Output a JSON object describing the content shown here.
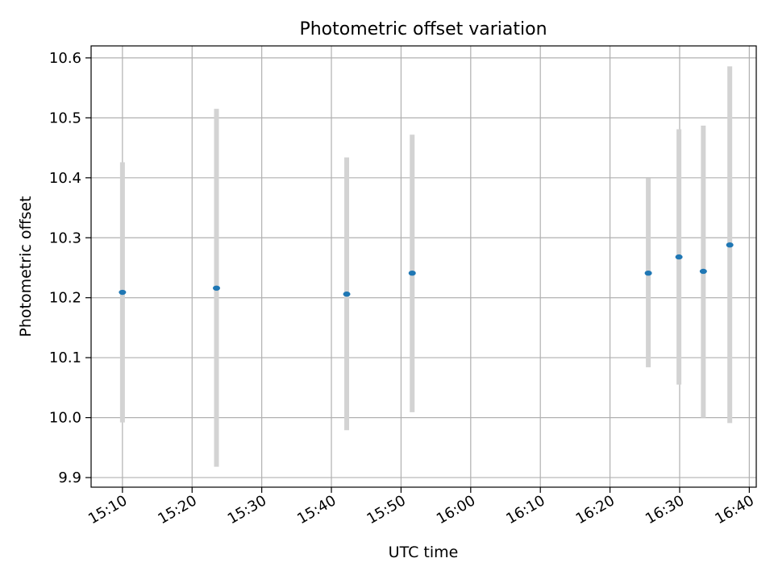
{
  "chart_data": {
    "type": "scatter",
    "title": "Photometric offset variation",
    "xlabel": "UTC time",
    "ylabel": "Photometric offset",
    "x_ticks": [
      "15:10",
      "15:20",
      "15:30",
      "15:40",
      "15:50",
      "16:00",
      "16:10",
      "16:20",
      "16:30",
      "16:40"
    ],
    "y_ticks": [
      "9.9",
      "10.0",
      "10.1",
      "10.2",
      "10.3",
      "10.4",
      "10.5",
      "10.6"
    ],
    "xlim": [
      "15:05.5",
      "16:41"
    ],
    "ylim": [
      9.884,
      10.62
    ],
    "grid": true,
    "points": [
      {
        "time": "15:10:00",
        "value": 10.209,
        "lower": 9.992,
        "upper": 10.426
      },
      {
        "time": "15:23:30",
        "value": 10.216,
        "lower": 9.918,
        "upper": 10.515
      },
      {
        "time": "15:42:12",
        "value": 10.206,
        "lower": 9.979,
        "upper": 10.434
      },
      {
        "time": "15:51:36",
        "value": 10.241,
        "lower": 10.009,
        "upper": 10.472
      },
      {
        "time": "16:25:30",
        "value": 10.241,
        "lower": 10.084,
        "upper": 10.399
      },
      {
        "time": "16:29:54",
        "value": 10.268,
        "lower": 10.055,
        "upper": 10.481
      },
      {
        "time": "16:33:24",
        "value": 10.244,
        "lower": 10.0,
        "upper": 10.487
      },
      {
        "time": "16:37:12",
        "value": 10.288,
        "lower": 9.991,
        "upper": 10.586
      }
    ],
    "colors": {
      "marker": "#1f77b4",
      "errorbar": "#d3d3d3",
      "grid": "#b0b0b0",
      "axes": "#000000"
    }
  }
}
